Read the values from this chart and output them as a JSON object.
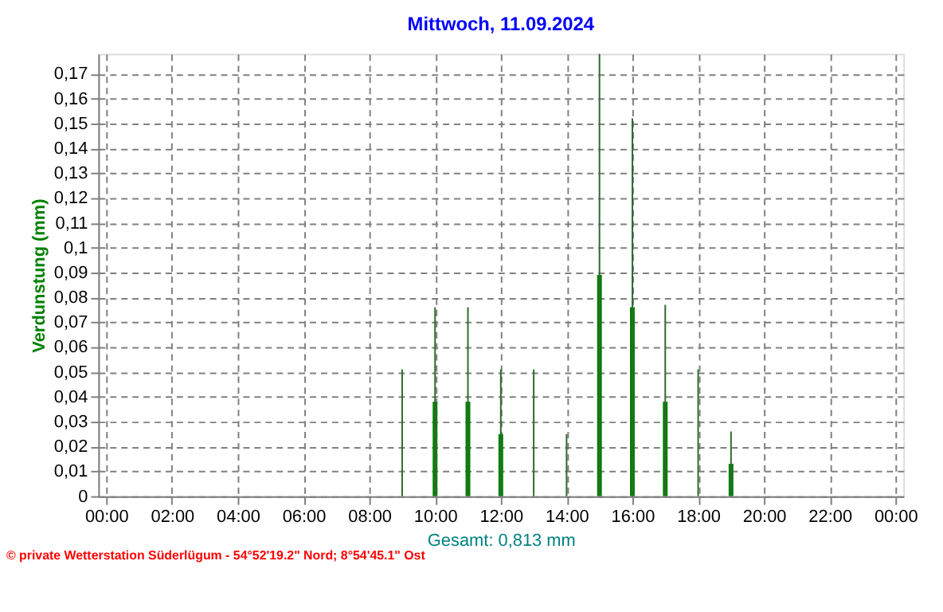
{
  "chart_data": {
    "type": "bar",
    "title": "Mittwoch, 11.09.2024",
    "xlabel": "Gesamt: 0,813 mm",
    "ylabel": "Verdunstung  (mm)",
    "annotations": [
      "© private Wetterstation Süderlügum  -  54°52'19.2\" Nord; 8°54'45.1\" Ost"
    ],
    "series": [
      {
        "color": "#008000",
        "x": [
          10,
          11,
          12,
          15,
          16,
          17,
          19
        ],
        "values": [
          0.038,
          0.038,
          0.025,
          0.089,
          0.076,
          0.038,
          0.013
        ]
      },
      {
        "color": "#2e6b2e",
        "x": [
          9,
          10,
          11,
          12,
          13,
          14,
          15,
          16,
          17,
          18,
          19
        ],
        "values": [
          0.051,
          0.076,
          0.076,
          0.051,
          0.051,
          0.025,
          0.178,
          0.152,
          0.077,
          0.051,
          0.026
        ]
      }
    ],
    "xlim": [
      0,
      24
    ],
    "xticks": [
      {
        "value": 0,
        "label": "00:00"
      },
      {
        "value": 2,
        "label": "02:00"
      },
      {
        "value": 4,
        "label": "04:00"
      },
      {
        "value": 6,
        "label": "06:00"
      },
      {
        "value": 8,
        "label": "08:00"
      },
      {
        "value": 10,
        "label": "10:00"
      },
      {
        "value": 12,
        "label": "12:00"
      },
      {
        "value": 14,
        "label": "14:00"
      },
      {
        "value": 16,
        "label": "16:00"
      },
      {
        "value": 18,
        "label": "18:00"
      },
      {
        "value": 20,
        "label": "20:00"
      },
      {
        "value": 22,
        "label": "22:00"
      },
      {
        "value": 24,
        "label": "00:00"
      }
    ],
    "ylim": [
      0,
      0.178
    ],
    "yticks": [
      0,
      {
        "value": 0.01,
        "label": "0,01"
      },
      {
        "value": 0.02,
        "label": "0,02"
      },
      {
        "value": 0.03,
        "label": "0,03"
      },
      {
        "value": 0.04,
        "label": "0,04"
      },
      {
        "value": 0.05,
        "label": "0,05"
      },
      {
        "value": 0.06,
        "label": "0,06"
      },
      {
        "value": 0.07,
        "label": "0,07"
      },
      {
        "value": 0.08,
        "label": "0,08"
      },
      {
        "value": 0.09,
        "label": "0,09"
      },
      {
        "value": 0.1,
        "label": "0,1"
      },
      {
        "value": 0.11,
        "label": "0,11"
      },
      {
        "value": 0.12,
        "label": "0,12"
      },
      {
        "value": 0.13,
        "label": "0,13"
      },
      {
        "value": 0.14,
        "label": "0,14"
      },
      {
        "value": 0.15,
        "label": "0,15"
      },
      {
        "value": 0.16,
        "label": "0,16"
      },
      {
        "value": 0.17,
        "label": "0,17"
      }
    ],
    "grid": true,
    "legend": false
  }
}
